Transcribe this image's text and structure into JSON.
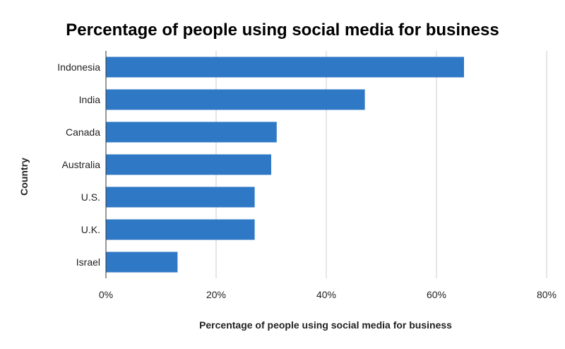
{
  "chart_data": {
    "type": "bar",
    "orientation": "horizontal",
    "title": "Percentage of people using social media for business",
    "xlabel": "Percentage of people using social media for business",
    "ylabel": "Country",
    "categories": [
      "Indonesia",
      "India",
      "Canada",
      "Australia",
      "U.S.",
      "U.K.",
      "Israel"
    ],
    "values": [
      65,
      47,
      31,
      30,
      27,
      27,
      13
    ],
    "xlim": [
      0,
      80
    ],
    "xticks": [
      0,
      20,
      40,
      60,
      80
    ],
    "xtick_labels": [
      "0%",
      "20%",
      "40%",
      "60%",
      "80%"
    ],
    "grid": true,
    "legend": "none",
    "bar_color": "#2f78c5"
  }
}
